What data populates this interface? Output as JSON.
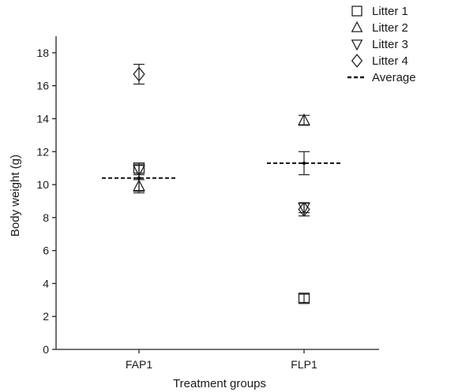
{
  "chart_data": {
    "type": "scatter",
    "xlabel": "Treatment groups",
    "ylabel": "Body weight (g)",
    "categories": [
      "FAP1",
      "FLP1"
    ],
    "ylim": [
      0,
      19
    ],
    "yticks": [
      0,
      2,
      4,
      6,
      8,
      10,
      12,
      14,
      16,
      18
    ],
    "grid": false,
    "legend_position": "top-right",
    "series": [
      {
        "name": "Litter 1",
        "marker": "square",
        "values": [
          11.0,
          3.1
        ],
        "errors": [
          0.3,
          0.25
        ]
      },
      {
        "name": "Litter 2",
        "marker": "triangle-up",
        "values": [
          9.9,
          13.9
        ],
        "errors": [
          0.4,
          0.3
        ]
      },
      {
        "name": "Litter 3",
        "marker": "triangle-down",
        "values": [
          10.9,
          8.6
        ],
        "errors": [
          0.3,
          0.3
        ]
      },
      {
        "name": "Litter 4",
        "marker": "diamond",
        "values": [
          16.7,
          8.5
        ],
        "errors": [
          0.6,
          0.4
        ]
      }
    ],
    "average": {
      "name": "Average",
      "values": [
        10.4,
        11.3
      ],
      "errors": [
        0.8,
        0.7
      ]
    }
  }
}
